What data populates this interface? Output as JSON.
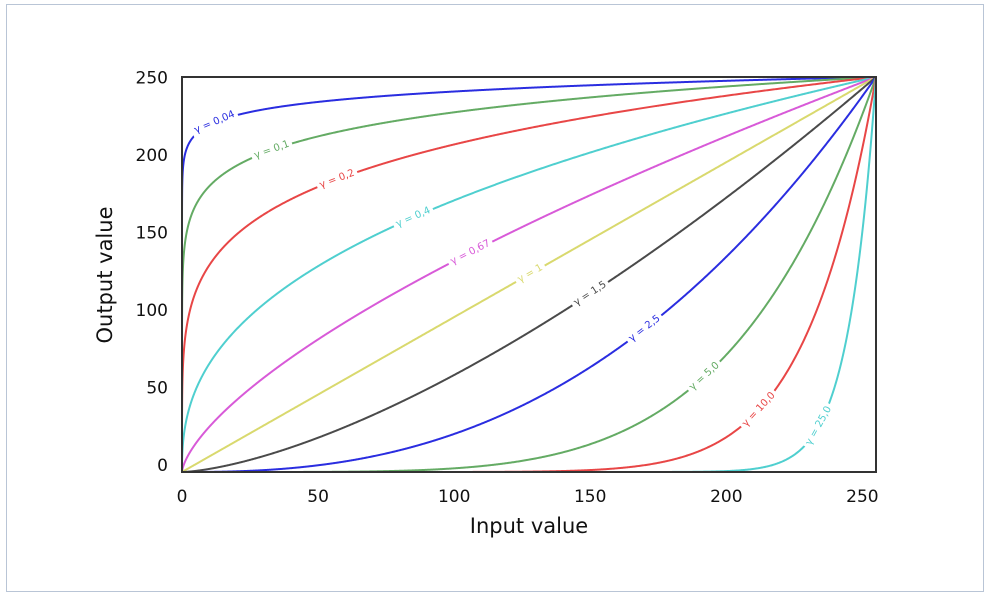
{
  "chart_data": {
    "type": "line",
    "xlabel": "Input value",
    "ylabel": "Output value",
    "xlim": [
      0,
      255
    ],
    "ylim": [
      0,
      255
    ],
    "xticks": [
      0,
      50,
      100,
      150,
      200,
      250
    ],
    "yticks": [
      0,
      50,
      100,
      150,
      200,
      250
    ],
    "grid": false,
    "legend": "none",
    "series": [
      {
        "label": "γ = 0,04",
        "gamma": 0.04,
        "color": "#2a2de0",
        "label_x": 12
      },
      {
        "label": "γ = 0,1",
        "gamma": 0.1,
        "color": "#64ab64",
        "label_x": 33
      },
      {
        "label": "γ = 0,2",
        "gamma": 0.2,
        "color": "#e84646",
        "label_x": 57
      },
      {
        "label": "γ = 0,4",
        "gamma": 0.4,
        "color": "#4fcfcf",
        "label_x": 85
      },
      {
        "label": "γ = 0,67",
        "gamma": 0.67,
        "color": "#d85ad8",
        "label_x": 106
      },
      {
        "label": "γ = 1",
        "gamma": 1.0,
        "color": "#d9d96e",
        "label_x": 128
      },
      {
        "label": "γ = 1,5",
        "gamma": 1.5,
        "color": "#4a4a4a",
        "label_x": 150
      },
      {
        "label": "γ = 2,5",
        "gamma": 2.5,
        "color": "#2a2de0",
        "label_x": 170
      },
      {
        "label": "γ = 5,0",
        "gamma": 5.0,
        "color": "#64ab64",
        "label_x": 192
      },
      {
        "label": "γ = 10,0",
        "gamma": 10.0,
        "color": "#e84646",
        "label_x": 212
      },
      {
        "label": "γ = 25,0",
        "gamma": 25.0,
        "color": "#4fcfcf",
        "label_x": 234
      }
    ]
  }
}
